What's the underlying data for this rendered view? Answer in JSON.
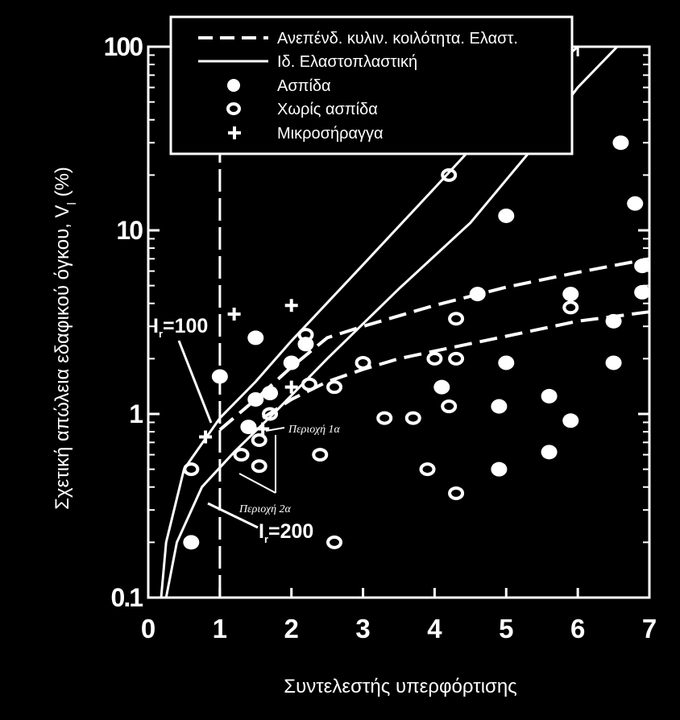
{
  "chart_data": {
    "type": "scatter",
    "xlabel": "Συντελεστής υπερφόρτισης",
    "ylabel": "Σχετική απώλεια εδαφικού όγκου, V",
    "ylabel_sub": "l",
    "ylabel_suffix": " (%)",
    "xlim": [
      0,
      7
    ],
    "ylim": [
      0.1,
      100
    ],
    "yscale": "log",
    "x_ticks": [
      "0",
      "1",
      "2",
      "3",
      "4",
      "5",
      "6",
      "7"
    ],
    "y_ticks": [
      "0.1",
      "1",
      "10",
      "100"
    ],
    "grid": false,
    "legend_position": "top",
    "legend": [
      {
        "label": "Ανεπένδ. κυλιν. κοιλότητα.  Ελαστ.",
        "marker": "dashed-line"
      },
      {
        "label": "Ιδ. Ελαστοπλαστική",
        "marker": "solid-line"
      },
      {
        "label": "Ασπίδα",
        "marker": "filled-circle"
      },
      {
        "label": "Χωρίς ασπίδα",
        "marker": "open-circle"
      },
      {
        "label": "Μικροσήραγγα",
        "marker": "plus"
      }
    ],
    "series": [
      {
        "name": "Ασπίδα",
        "marker": "filled-circle",
        "points": [
          [
            1.0,
            1.6
          ],
          [
            1.5,
            2.6
          ],
          [
            1.5,
            1.2
          ],
          [
            1.7,
            1.3
          ],
          [
            2.0,
            1.9
          ],
          [
            2.2,
            2.4
          ],
          [
            1.4,
            0.85
          ],
          [
            0.6,
            0.2
          ],
          [
            4.1,
            1.4
          ],
          [
            4.6,
            4.5
          ],
          [
            5.0,
            1.9
          ],
          [
            5.0,
            12
          ],
          [
            4.9,
            1.1
          ],
          [
            4.9,
            0.5
          ],
          [
            5.6,
            1.25
          ],
          [
            5.6,
            0.62
          ],
          [
            5.9,
            0.92
          ],
          [
            5.9,
            4.5
          ],
          [
            6.5,
            1.9
          ],
          [
            6.5,
            3.2
          ],
          [
            6.6,
            30
          ],
          [
            6.8,
            14
          ],
          [
            6.9,
            4.6
          ],
          [
            6.9,
            6.4
          ]
        ]
      },
      {
        "name": "Χωρίς ασπίδα",
        "marker": "open-circle",
        "points": [
          [
            0.6,
            0.5
          ],
          [
            1.3,
            0.6
          ],
          [
            1.55,
            0.52
          ],
          [
            1.55,
            0.72
          ],
          [
            1.7,
            1.0
          ],
          [
            2.2,
            2.7
          ],
          [
            2.25,
            1.45
          ],
          [
            2.6,
            1.4
          ],
          [
            2.4,
            0.6
          ],
          [
            3.0,
            1.9
          ],
          [
            3.3,
            0.95
          ],
          [
            3.7,
            0.95
          ],
          [
            3.9,
            0.5
          ],
          [
            4.0,
            2.0
          ],
          [
            4.3,
            2.0
          ],
          [
            4.2,
            1.1
          ],
          [
            4.3,
            3.3
          ],
          [
            4.3,
            0.37
          ],
          [
            4.2,
            20
          ],
          [
            5.9,
            3.8
          ],
          [
            2.6,
            0.2
          ]
        ]
      },
      {
        "name": "Μικροσήραγγα",
        "marker": "plus",
        "points": [
          [
            0.8,
            0.75
          ],
          [
            1.2,
            3.5
          ],
          [
            2.0,
            3.9
          ],
          [
            2.0,
            1.4
          ],
          [
            1.6,
            0.83
          ]
        ]
      }
    ],
    "curves": [
      {
        "style": "solid",
        "label": "Ir=100",
        "points": [
          [
            0.18,
            0.1
          ],
          [
            0.25,
            0.2
          ],
          [
            0.5,
            0.5
          ],
          [
            1.0,
            0.95
          ],
          [
            1.5,
            1.5
          ],
          [
            2.0,
            2.5
          ],
          [
            3.0,
            6.5
          ],
          [
            4.0,
            17
          ],
          [
            5.0,
            45
          ],
          [
            6.0,
            100
          ],
          [
            6.45,
            100
          ]
        ]
      },
      {
        "style": "solid",
        "label": "Ir=200",
        "points": [
          [
            0.25,
            0.1
          ],
          [
            0.4,
            0.2
          ],
          [
            0.75,
            0.4
          ],
          [
            1.2,
            0.62
          ],
          [
            1.8,
            1.05
          ],
          [
            2.5,
            2.0
          ],
          [
            3.5,
            4.8
          ],
          [
            4.5,
            11
          ],
          [
            5.3,
            26
          ],
          [
            6.0,
            60
          ],
          [
            6.55,
            100
          ],
          [
            7.0,
            100
          ]
        ]
      },
      {
        "style": "dashed",
        "points": [
          [
            1.0,
            0.82
          ],
          [
            1.5,
            1.2
          ],
          [
            2.0,
            1.8
          ],
          [
            2.5,
            2.6
          ],
          [
            3.0,
            3.0
          ],
          [
            4.0,
            3.9
          ],
          [
            5.0,
            4.9
          ],
          [
            6.0,
            5.9
          ],
          [
            7.0,
            7.0
          ]
        ]
      },
      {
        "style": "dashed",
        "points": [
          [
            1.6,
            0.95
          ],
          [
            2.0,
            1.2
          ],
          [
            2.5,
            1.5
          ],
          [
            3.0,
            1.75
          ],
          [
            3.5,
            2.0
          ],
          [
            4.0,
            2.2
          ],
          [
            5.0,
            2.65
          ],
          [
            6.0,
            3.2
          ],
          [
            7.0,
            3.6
          ]
        ]
      },
      {
        "style": "dashed-vertical",
        "points": [
          [
            1.0,
            0.1
          ],
          [
            1.0,
            100
          ]
        ]
      }
    ],
    "annotations": [
      {
        "main": "I",
        "sub": "r",
        "tail": "=100"
      },
      {
        "main": "I",
        "sub": "r",
        "tail": "=200"
      },
      {
        "text": "Περιοχή 1α"
      },
      {
        "text": "Περιοχή 2α"
      }
    ]
  }
}
